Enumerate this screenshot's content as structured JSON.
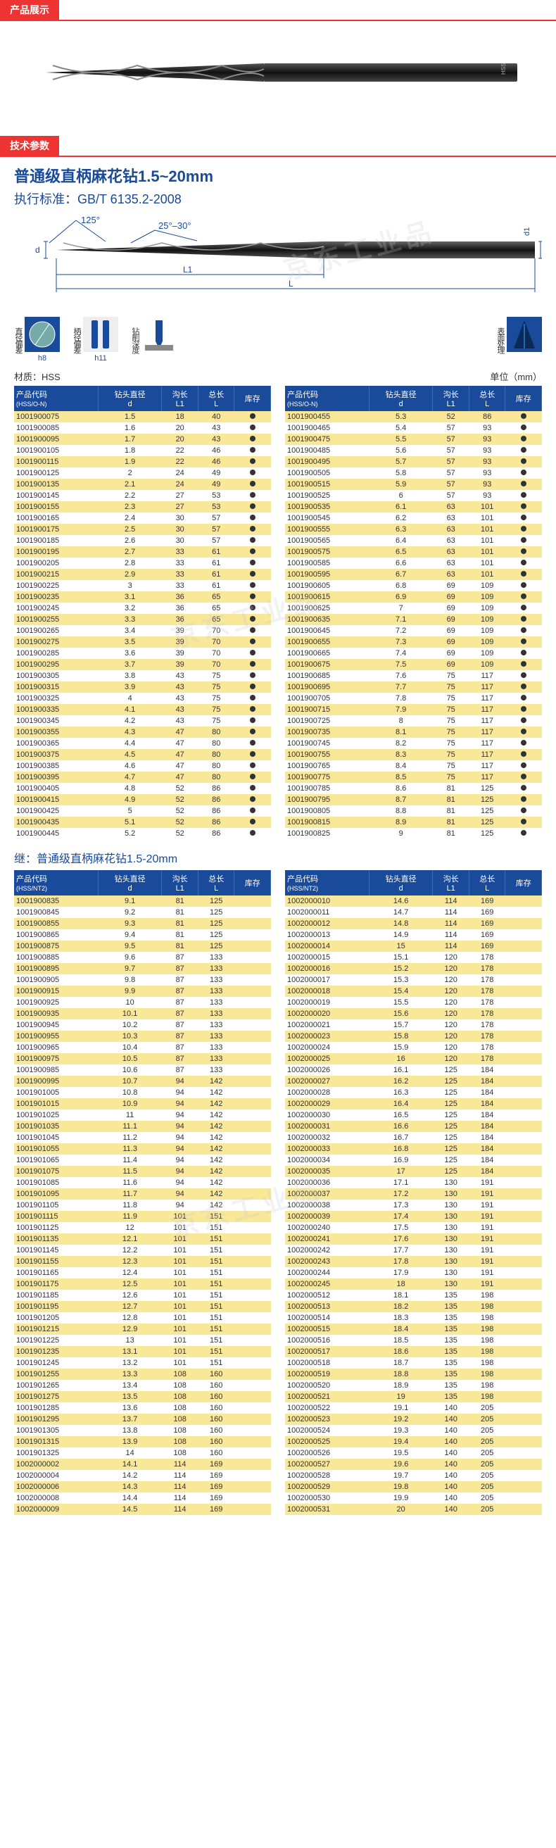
{
  "sections": {
    "display": "产品展示",
    "specs": "技术参数"
  },
  "titles": {
    "main": "普通级直柄麻花钻1.5~20mm",
    "standard": "执行标准：GB/T 6135.2-2008",
    "continue": "继：普通级直柄麻花钻1.5-20mm"
  },
  "diagram": {
    "angle1": "125°",
    "angle2": "25°–30°",
    "d": "d",
    "d1": "d1",
    "L1": "L1",
    "L": "L"
  },
  "icons": [
    {
      "label": "直径偏差",
      "sub": "h8"
    },
    {
      "label": "柄径偏差",
      "sub": "h11"
    },
    {
      "label": "钻削深度",
      "sub": ""
    },
    {
      "label": "表面处理",
      "sub": ""
    }
  ],
  "material": "材质：HSS",
  "unit": "单位（mm）",
  "headers": {
    "code": "产品代码",
    "codeSub1": "(HSS/O-N)",
    "codeSub2": "(HSS/NT2)",
    "dia": "钻头直径",
    "diaSub": "d",
    "flute": "沟长",
    "fluteSub": "L1",
    "total": "总长",
    "totalSub": "L",
    "stock": "库存"
  },
  "colors": {
    "header_bg": "#1a4a9a",
    "row_alt": "#f9e898",
    "accent": "#e33",
    "text": "#333333"
  },
  "tableA1": [
    [
      "1001900075",
      "1.5",
      "18",
      "40"
    ],
    [
      "1001900085",
      "1.6",
      "20",
      "43"
    ],
    [
      "1001900095",
      "1.7",
      "20",
      "43"
    ],
    [
      "1001900105",
      "1.8",
      "22",
      "46"
    ],
    [
      "1001900115",
      "1.9",
      "22",
      "46"
    ],
    [
      "1001900125",
      "2",
      "24",
      "49"
    ],
    [
      "1001900135",
      "2.1",
      "24",
      "49"
    ],
    [
      "1001900145",
      "2.2",
      "27",
      "53"
    ],
    [
      "1001900155",
      "2.3",
      "27",
      "53"
    ],
    [
      "1001900165",
      "2.4",
      "30",
      "57"
    ],
    [
      "1001900175",
      "2.5",
      "30",
      "57"
    ],
    [
      "1001900185",
      "2.6",
      "30",
      "57"
    ],
    [
      "1001900195",
      "2.7",
      "33",
      "61"
    ],
    [
      "1001900205",
      "2.8",
      "33",
      "61"
    ],
    [
      "1001900215",
      "2.9",
      "33",
      "61"
    ],
    [
      "1001900225",
      "3",
      "33",
      "61"
    ],
    [
      "1001900235",
      "3.1",
      "36",
      "65"
    ],
    [
      "1001900245",
      "3.2",
      "36",
      "65"
    ],
    [
      "1001900255",
      "3.3",
      "36",
      "65"
    ],
    [
      "1001900265",
      "3.4",
      "39",
      "70"
    ],
    [
      "1001900275",
      "3.5",
      "39",
      "70"
    ],
    [
      "1001900285",
      "3.6",
      "39",
      "70"
    ],
    [
      "1001900295",
      "3.7",
      "39",
      "70"
    ],
    [
      "1001900305",
      "3.8",
      "43",
      "75"
    ],
    [
      "1001900315",
      "3.9",
      "43",
      "75"
    ],
    [
      "1001900325",
      "4",
      "43",
      "75"
    ],
    [
      "1001900335",
      "4.1",
      "43",
      "75"
    ],
    [
      "1001900345",
      "4.2",
      "43",
      "75"
    ],
    [
      "1001900355",
      "4.3",
      "47",
      "80"
    ],
    [
      "1001900365",
      "4.4",
      "47",
      "80"
    ],
    [
      "1001900375",
      "4.5",
      "47",
      "80"
    ],
    [
      "1001900385",
      "4.6",
      "47",
      "80"
    ],
    [
      "1001900395",
      "4.7",
      "47",
      "80"
    ],
    [
      "1001900405",
      "4.8",
      "52",
      "86"
    ],
    [
      "1001900415",
      "4.9",
      "52",
      "86"
    ],
    [
      "1001900425",
      "5",
      "52",
      "86"
    ],
    [
      "1001900435",
      "5.1",
      "52",
      "86"
    ],
    [
      "1001900445",
      "5.2",
      "52",
      "86"
    ]
  ],
  "tableA2": [
    [
      "1001900455",
      "5.3",
      "52",
      "86"
    ],
    [
      "1001900465",
      "5.4",
      "57",
      "93"
    ],
    [
      "1001900475",
      "5.5",
      "57",
      "93"
    ],
    [
      "1001900485",
      "5.6",
      "57",
      "93"
    ],
    [
      "1001900495",
      "5.7",
      "57",
      "93"
    ],
    [
      "1001900505",
      "5.8",
      "57",
      "93"
    ],
    [
      "1001900515",
      "5.9",
      "57",
      "93"
    ],
    [
      "1001900525",
      "6",
      "57",
      "93"
    ],
    [
      "1001900535",
      "6.1",
      "63",
      "101"
    ],
    [
      "1001900545",
      "6.2",
      "63",
      "101"
    ],
    [
      "1001900555",
      "6.3",
      "63",
      "101"
    ],
    [
      "1001900565",
      "6.4",
      "63",
      "101"
    ],
    [
      "1001900575",
      "6.5",
      "63",
      "101"
    ],
    [
      "1001900585",
      "6.6",
      "63",
      "101"
    ],
    [
      "1001900595",
      "6.7",
      "63",
      "101"
    ],
    [
      "1001900605",
      "6.8",
      "69",
      "109"
    ],
    [
      "1001900615",
      "6.9",
      "69",
      "109"
    ],
    [
      "1001900625",
      "7",
      "69",
      "109"
    ],
    [
      "1001900635",
      "7.1",
      "69",
      "109"
    ],
    [
      "1001900645",
      "7.2",
      "69",
      "109"
    ],
    [
      "1001900655",
      "7.3",
      "69",
      "109"
    ],
    [
      "1001900665",
      "7.4",
      "69",
      "109"
    ],
    [
      "1001900675",
      "7.5",
      "69",
      "109"
    ],
    [
      "1001900685",
      "7.6",
      "75",
      "117"
    ],
    [
      "1001900695",
      "7.7",
      "75",
      "117"
    ],
    [
      "1001900705",
      "7.8",
      "75",
      "117"
    ],
    [
      "1001900715",
      "7.9",
      "75",
      "117"
    ],
    [
      "1001900725",
      "8",
      "75",
      "117"
    ],
    [
      "1001900735",
      "8.1",
      "75",
      "117"
    ],
    [
      "1001900745",
      "8.2",
      "75",
      "117"
    ],
    [
      "1001900755",
      "8.3",
      "75",
      "117"
    ],
    [
      "1001900765",
      "8.4",
      "75",
      "117"
    ],
    [
      "1001900775",
      "8.5",
      "75",
      "117"
    ],
    [
      "1001900785",
      "8.6",
      "81",
      "125"
    ],
    [
      "1001900795",
      "8.7",
      "81",
      "125"
    ],
    [
      "1001900805",
      "8.8",
      "81",
      "125"
    ],
    [
      "1001900815",
      "8.9",
      "81",
      "125"
    ],
    [
      "1001900825",
      "9",
      "81",
      "125"
    ]
  ],
  "tableB1": [
    [
      "1001900835",
      "9.1",
      "81",
      "125"
    ],
    [
      "1001900845",
      "9.2",
      "81",
      "125"
    ],
    [
      "1001900855",
      "9.3",
      "81",
      "125"
    ],
    [
      "1001900865",
      "9.4",
      "81",
      "125"
    ],
    [
      "1001900875",
      "9.5",
      "81",
      "125"
    ],
    [
      "1001900885",
      "9.6",
      "87",
      "133"
    ],
    [
      "1001900895",
      "9.7",
      "87",
      "133"
    ],
    [
      "1001900905",
      "9.8",
      "87",
      "133"
    ],
    [
      "1001900915",
      "9.9",
      "87",
      "133"
    ],
    [
      "1001900925",
      "10",
      "87",
      "133"
    ],
    [
      "1001900935",
      "10.1",
      "87",
      "133"
    ],
    [
      "1001900945",
      "10.2",
      "87",
      "133"
    ],
    [
      "1001900955",
      "10.3",
      "87",
      "133"
    ],
    [
      "1001900965",
      "10.4",
      "87",
      "133"
    ],
    [
      "1001900975",
      "10.5",
      "87",
      "133"
    ],
    [
      "1001900985",
      "10.6",
      "87",
      "133"
    ],
    [
      "1001900995",
      "10.7",
      "94",
      "142"
    ],
    [
      "1001901005",
      "10.8",
      "94",
      "142"
    ],
    [
      "1001901015",
      "10.9",
      "94",
      "142"
    ],
    [
      "1001901025",
      "11",
      "94",
      "142"
    ],
    [
      "1001901035",
      "11.1",
      "94",
      "142"
    ],
    [
      "1001901045",
      "11.2",
      "94",
      "142"
    ],
    [
      "1001901055",
      "11.3",
      "94",
      "142"
    ],
    [
      "1001901065",
      "11.4",
      "94",
      "142"
    ],
    [
      "1001901075",
      "11.5",
      "94",
      "142"
    ],
    [
      "1001901085",
      "11.6",
      "94",
      "142"
    ],
    [
      "1001901095",
      "11.7",
      "94",
      "142"
    ],
    [
      "1001901105",
      "11.8",
      "94",
      "142"
    ],
    [
      "1001901115",
      "11.9",
      "101",
      "151"
    ],
    [
      "1001901125",
      "12",
      "101",
      "151"
    ],
    [
      "1001901135",
      "12.1",
      "101",
      "151"
    ],
    [
      "1001901145",
      "12.2",
      "101",
      "151"
    ],
    [
      "1001901155",
      "12.3",
      "101",
      "151"
    ],
    [
      "1001901165",
      "12.4",
      "101",
      "151"
    ],
    [
      "1001901175",
      "12.5",
      "101",
      "151"
    ],
    [
      "1001901185",
      "12.6",
      "101",
      "151"
    ],
    [
      "1001901195",
      "12.7",
      "101",
      "151"
    ],
    [
      "1001901205",
      "12.8",
      "101",
      "151"
    ],
    [
      "1001901215",
      "12.9",
      "101",
      "151"
    ],
    [
      "1001901225",
      "13",
      "101",
      "151"
    ],
    [
      "1001901235",
      "13.1",
      "101",
      "151"
    ],
    [
      "1001901245",
      "13.2",
      "101",
      "151"
    ],
    [
      "1001901255",
      "13.3",
      "108",
      "160"
    ],
    [
      "1001901265",
      "13.4",
      "108",
      "160"
    ],
    [
      "1001901275",
      "13.5",
      "108",
      "160"
    ],
    [
      "1001901285",
      "13.6",
      "108",
      "160"
    ],
    [
      "1001901295",
      "13.7",
      "108",
      "160"
    ],
    [
      "1001901305",
      "13.8",
      "108",
      "160"
    ],
    [
      "1001901315",
      "13.9",
      "108",
      "160"
    ],
    [
      "1001901325",
      "14",
      "108",
      "160"
    ],
    [
      "1002000002",
      "14.1",
      "114",
      "169"
    ],
    [
      "1002000004",
      "14.2",
      "114",
      "169"
    ],
    [
      "1002000006",
      "14.3",
      "114",
      "169"
    ],
    [
      "1002000008",
      "14.4",
      "114",
      "169"
    ],
    [
      "1002000009",
      "14.5",
      "114",
      "169"
    ]
  ],
  "tableB2": [
    [
      "1002000010",
      "14.6",
      "114",
      "169"
    ],
    [
      "1002000011",
      "14.7",
      "114",
      "169"
    ],
    [
      "1002000012",
      "14.8",
      "114",
      "169"
    ],
    [
      "1002000013",
      "14.9",
      "114",
      "169"
    ],
    [
      "1002000014",
      "15",
      "114",
      "169"
    ],
    [
      "1002000015",
      "15.1",
      "120",
      "178"
    ],
    [
      "1002000016",
      "15.2",
      "120",
      "178"
    ],
    [
      "1002000017",
      "15.3",
      "120",
      "178"
    ],
    [
      "1002000018",
      "15.4",
      "120",
      "178"
    ],
    [
      "1002000019",
      "15.5",
      "120",
      "178"
    ],
    [
      "1002000020",
      "15.6",
      "120",
      "178"
    ],
    [
      "1002000021",
      "15.7",
      "120",
      "178"
    ],
    [
      "1002000023",
      "15.8",
      "120",
      "178"
    ],
    [
      "1002000024",
      "15.9",
      "120",
      "178"
    ],
    [
      "1002000025",
      "16",
      "120",
      "178"
    ],
    [
      "1002000026",
      "16.1",
      "125",
      "184"
    ],
    [
      "1002000027",
      "16.2",
      "125",
      "184"
    ],
    [
      "1002000028",
      "16.3",
      "125",
      "184"
    ],
    [
      "1002000029",
      "16.4",
      "125",
      "184"
    ],
    [
      "1002000030",
      "16.5",
      "125",
      "184"
    ],
    [
      "1002000031",
      "16.6",
      "125",
      "184"
    ],
    [
      "1002000032",
      "16.7",
      "125",
      "184"
    ],
    [
      "1002000033",
      "16.8",
      "125",
      "184"
    ],
    [
      "1002000034",
      "16.9",
      "125",
      "184"
    ],
    [
      "1002000035",
      "17",
      "125",
      "184"
    ],
    [
      "1002000036",
      "17.1",
      "130",
      "191"
    ],
    [
      "1002000037",
      "17.2",
      "130",
      "191"
    ],
    [
      "1002000038",
      "17.3",
      "130",
      "191"
    ],
    [
      "1002000039",
      "17.4",
      "130",
      "191"
    ],
    [
      "1002000240",
      "17.5",
      "130",
      "191"
    ],
    [
      "1002000241",
      "17.6",
      "130",
      "191"
    ],
    [
      "1002000242",
      "17.7",
      "130",
      "191"
    ],
    [
      "1002000243",
      "17.8",
      "130",
      "191"
    ],
    [
      "1002000244",
      "17.9",
      "130",
      "191"
    ],
    [
      "1002000245",
      "18",
      "130",
      "191"
    ],
    [
      "1002000512",
      "18.1",
      "135",
      "198"
    ],
    [
      "1002000513",
      "18.2",
      "135",
      "198"
    ],
    [
      "1002000514",
      "18.3",
      "135",
      "198"
    ],
    [
      "1002000515",
      "18.4",
      "135",
      "198"
    ],
    [
      "1002000516",
      "18.5",
      "135",
      "198"
    ],
    [
      "1002000517",
      "18.6",
      "135",
      "198"
    ],
    [
      "1002000518",
      "18.7",
      "135",
      "198"
    ],
    [
      "1002000519",
      "18.8",
      "135",
      "198"
    ],
    [
      "1002000520",
      "18.9",
      "135",
      "198"
    ],
    [
      "1002000521",
      "19",
      "135",
      "198"
    ],
    [
      "1002000522",
      "19.1",
      "140",
      "205"
    ],
    [
      "1002000523",
      "19.2",
      "140",
      "205"
    ],
    [
      "1002000524",
      "19.3",
      "140",
      "205"
    ],
    [
      "1002000525",
      "19.4",
      "140",
      "205"
    ],
    [
      "1002000526",
      "19.5",
      "140",
      "205"
    ],
    [
      "1002000527",
      "19.6",
      "140",
      "205"
    ],
    [
      "1002000528",
      "19.7",
      "140",
      "205"
    ],
    [
      "1002000529",
      "19.8",
      "140",
      "205"
    ],
    [
      "1002000530",
      "19.9",
      "140",
      "205"
    ],
    [
      "1002000531",
      "20",
      "140",
      "205"
    ]
  ]
}
